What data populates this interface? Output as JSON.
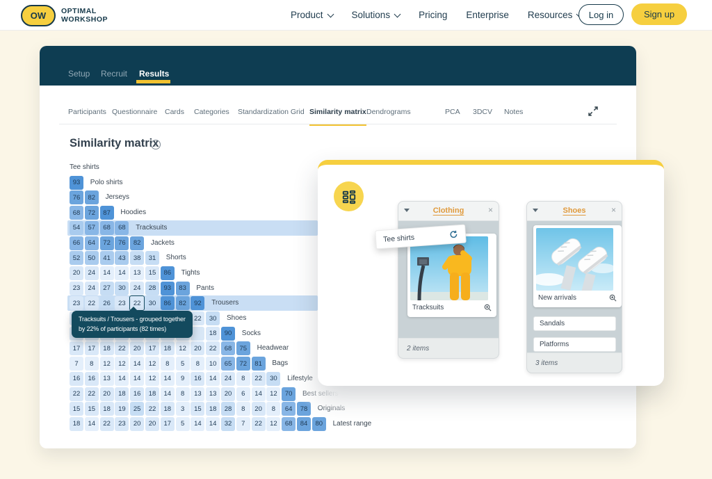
{
  "brand": {
    "abbr": "OW",
    "line1": "OPTIMAL",
    "line2": "WORKSHOP"
  },
  "nav": {
    "items": [
      {
        "label": "Product",
        "has_dropdown": true
      },
      {
        "label": "Solutions",
        "has_dropdown": true
      },
      {
        "label": "Pricing",
        "has_dropdown": false
      },
      {
        "label": "Enterprise",
        "has_dropdown": false
      },
      {
        "label": "Resources",
        "has_dropdown": true
      }
    ],
    "login": "Log in",
    "signup": "Sign up"
  },
  "study": {
    "tabs": [
      {
        "label": "Setup",
        "active": false
      },
      {
        "label": "Recruit",
        "active": false
      },
      {
        "label": "Results",
        "active": true
      }
    ],
    "subtabs": [
      {
        "label": "Participants",
        "active": false
      },
      {
        "label": "Questionnaire",
        "active": false
      },
      {
        "label": "Cards",
        "active": false
      },
      {
        "label": "Categories",
        "active": false
      },
      {
        "label": "Standardization Grid",
        "active": false
      },
      {
        "label": "Similarity matrix",
        "active": true
      },
      {
        "label": "Dendrograms",
        "active": false
      },
      {
        "label": "PCA",
        "active": false
      },
      {
        "label": "3DCV",
        "active": false
      },
      {
        "label": "Notes",
        "active": false
      }
    ],
    "title": "Similarity matrix"
  },
  "matrix": {
    "rows": [
      {
        "label": "Tee shirts",
        "values": []
      },
      {
        "label": "Polo shirts",
        "values": [
          93
        ]
      },
      {
        "label": "Jerseys",
        "values": [
          76,
          82
        ]
      },
      {
        "label": "Hoodies",
        "values": [
          68,
          72,
          87
        ]
      },
      {
        "label": "Tracksuits",
        "values": [
          54,
          57,
          68,
          68
        ],
        "highlighted": true
      },
      {
        "label": "Jackets",
        "values": [
          66,
          64,
          72,
          76,
          82
        ]
      },
      {
        "label": "Shorts",
        "values": [
          52,
          50,
          41,
          43,
          38,
          31
        ]
      },
      {
        "label": "Tights",
        "values": [
          20,
          24,
          14,
          14,
          13,
          15,
          86
        ]
      },
      {
        "label": "Pants",
        "values": [
          23,
          24,
          27,
          30,
          24,
          28,
          93,
          83
        ]
      },
      {
        "label": "Trousers",
        "values": [
          23,
          22,
          26,
          23,
          22,
          30,
          86,
          82,
          92
        ],
        "highlighted": true,
        "hover_index": 4
      },
      {
        "label": "Shoes",
        "values": [
          null,
          null,
          null,
          null,
          null,
          null,
          null,
          null,
          22,
          30
        ]
      },
      {
        "label": "Socks",
        "values": [
          null,
          null,
          null,
          null,
          null,
          null,
          null,
          null,
          null,
          18,
          90
        ]
      },
      {
        "label": "Headwear",
        "values": [
          17,
          17,
          18,
          22,
          20,
          17,
          18,
          12,
          20,
          22,
          68,
          75
        ]
      },
      {
        "label": "Bags",
        "values": [
          7,
          8,
          12,
          12,
          14,
          12,
          8,
          5,
          8,
          10,
          65,
          72,
          81
        ]
      },
      {
        "label": "Lifestyle",
        "values": [
          16,
          16,
          13,
          14,
          14,
          12,
          14,
          9,
          16,
          14,
          24,
          8,
          22,
          30
        ]
      },
      {
        "label": "Best sellers",
        "values": [
          22,
          22,
          20,
          18,
          16,
          18,
          14,
          8,
          13,
          13,
          20,
          6,
          14,
          12,
          70
        ]
      },
      {
        "label": "Originals",
        "values": [
          15,
          15,
          18,
          19,
          25,
          22,
          18,
          3,
          15,
          18,
          28,
          8,
          20,
          8,
          64,
          78
        ]
      },
      {
        "label": "Latest range",
        "values": [
          18,
          14,
          22,
          23,
          20,
          20,
          17,
          5,
          14,
          14,
          32,
          7,
          22,
          12,
          68,
          84,
          80
        ]
      }
    ]
  },
  "tooltip": {
    "line1": "Tracksuits / Trousers - grouped together",
    "line2": "by 22% of participants (82 times)"
  },
  "overlay": {
    "drag_card_label": "Tee shirts",
    "panels": [
      {
        "title": "Clothing",
        "image_card": {
          "label": "Tracksuits",
          "image": "yellow-tracksuit-photo"
        },
        "footer": "2 items"
      },
      {
        "title": "Shoes",
        "image_card": {
          "label": "New arrivals",
          "image": "white-sneakers-photo"
        },
        "list_cards": [
          "Sandals",
          "Platforms"
        ],
        "footer": "3 items"
      }
    ]
  },
  "colors": {
    "brand_yellow": "#F6CF3F",
    "header_teal": "#0E3D52",
    "tooltip_teal": "#134A5E",
    "accent_orange": "#E09A3C",
    "highlight_band": "#C9DEF4",
    "cell_text": "#1F3A54",
    "cell_scale": [
      {
        "min": 85,
        "color": "#4F93D7"
      },
      {
        "min": 70,
        "color": "#6BA4DD"
      },
      {
        "min": 55,
        "color": "#88B6E6"
      },
      {
        "min": 40,
        "color": "#A9CBEE"
      },
      {
        "min": 25,
        "color": "#C6DDF4"
      },
      {
        "min": 15,
        "color": "#D9E8F8"
      },
      {
        "min": 0,
        "color": "#E4EFFB"
      }
    ]
  }
}
